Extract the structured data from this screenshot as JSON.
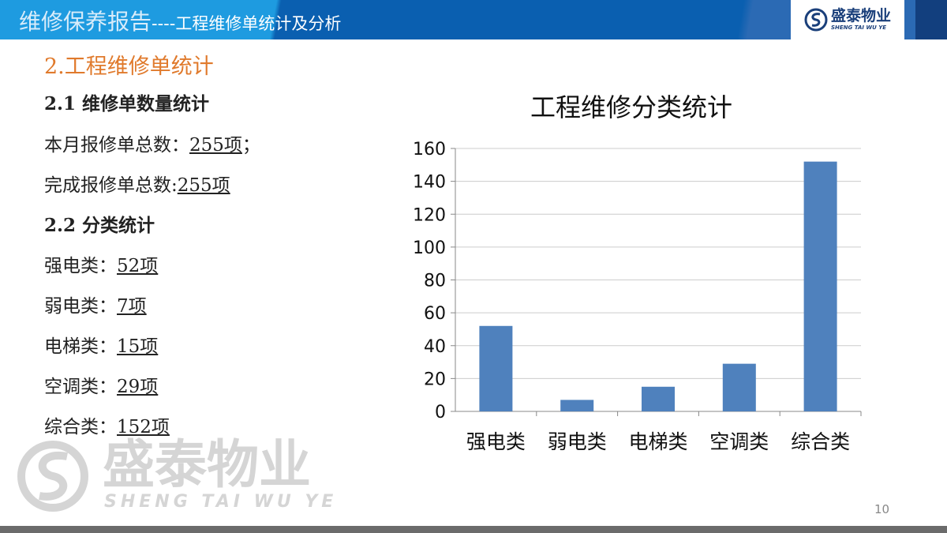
{
  "header": {
    "title": "维修保养报告",
    "subtitle": "----工程维修单统计及分析",
    "logo_text": "盛泰物业",
    "logo_sub": "SHENG TAI WU YE"
  },
  "section_title": "2.工程维修单统计",
  "s21": {
    "heading": "2.1 维修单数量统计",
    "l1_label": "本月报修单总数：",
    "l1_value": "255项",
    "l1_suffix": "；",
    "l2_label": "完成报修单总数:",
    "l2_value": "255项"
  },
  "s22": {
    "heading": "2.2 分类统计",
    "items": [
      {
        "label": "强电类：",
        "value": "52项"
      },
      {
        "label": "弱电类：",
        "value": "7项"
      },
      {
        "label": "电梯类：",
        "value": "15项"
      },
      {
        "label": "空调类：",
        "value": "29项"
      },
      {
        "label": "综合类：",
        "value": "152项"
      }
    ]
  },
  "watermark": {
    "text": "盛泰物业",
    "sub": "SHENG TAI WU YE"
  },
  "page_number": "10",
  "chart_data": {
    "type": "bar",
    "title": "工程维修分类统计",
    "categories": [
      "强电类",
      "弱电类",
      "电梯类",
      "空调类",
      "综合类"
    ],
    "values": [
      52,
      7,
      15,
      29,
      152
    ],
    "ylim": [
      0,
      160
    ],
    "yticks": [
      0,
      20,
      40,
      60,
      80,
      100,
      120,
      140,
      160
    ],
    "grid": true,
    "color": "#4f81bd",
    "xlabel": "",
    "ylabel": ""
  }
}
